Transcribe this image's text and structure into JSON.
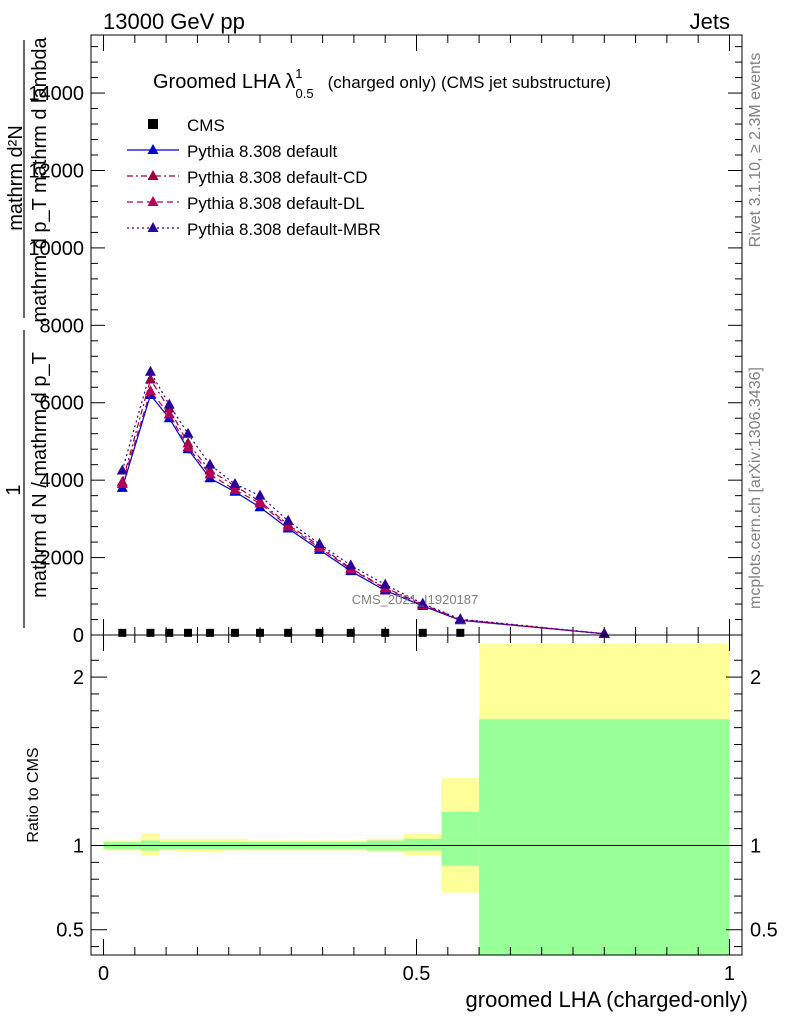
{
  "header": {
    "left": "13000 GeV pp",
    "right": "Jets"
  },
  "side_labels": {
    "rivet": "Rivet 3.1.10, ≥ 2.3M events",
    "mcplots": "mcplots.cern.ch [arXiv:1306.3436]"
  },
  "watermark": "CMS_2021_I1920187",
  "colors": {
    "default": "#0000cc",
    "cd": "#99003d",
    "dl": "#b3005a",
    "mbr": "#2b0099",
    "band_yellow": "#ffff99",
    "band_green": "#99ff99"
  },
  "chart_data": [
    {
      "type": "line",
      "title": "Groomed LHA λ",
      "title_sup": "1",
      "title_sub": "0.5",
      "title_suffix": "(charged only) (CMS jet substructure)",
      "ylabel_top": "mathrm d²N",
      "ylabel_bottom_left": "1",
      "ylabel_mid": "mathrm d p_T mathrm d lambda",
      "ylabel_main": "mathrm d N / mathrm d p_T",
      "ylim": [
        0,
        15500
      ],
      "yticks": [
        {
          "v": 0,
          "label": "0"
        },
        {
          "v": 2000,
          "label": "2000"
        },
        {
          "v": 4000,
          "label": "4000"
        },
        {
          "v": 6000,
          "label": "6000"
        },
        {
          "v": 8000,
          "label": "8000"
        },
        {
          "v": 10000,
          "label": "10000"
        },
        {
          "v": 12000,
          "label": "12000"
        },
        {
          "v": 14000,
          "label": "14000"
        }
      ],
      "xlim": [
        -0.02,
        1.02
      ],
      "data": {
        "name": "CMS",
        "x": [
          0.03,
          0.075,
          0.105,
          0.135,
          0.17,
          0.21,
          0.25,
          0.295,
          0.345,
          0.395,
          0.45,
          0.51,
          0.57
        ],
        "y": [
          30,
          30,
          30,
          30,
          30,
          30,
          30,
          30,
          30,
          30,
          30,
          30,
          30
        ]
      },
      "series": [
        {
          "name": "Pythia 8.308 default",
          "style": "solid",
          "x": [
            0.03,
            0.075,
            0.105,
            0.135,
            0.17,
            0.21,
            0.25,
            0.295,
            0.345,
            0.395,
            0.45,
            0.51,
            0.57,
            0.8
          ],
          "y": [
            3800,
            6200,
            5600,
            4800,
            4050,
            3700,
            3300,
            2750,
            2200,
            1650,
            1150,
            750,
            380,
            30
          ]
        },
        {
          "name": "Pythia 8.308 default-CD",
          "style": "dashdot",
          "x": [
            0.03,
            0.075,
            0.105,
            0.135,
            0.17,
            0.21,
            0.25,
            0.295,
            0.345,
            0.395,
            0.45,
            0.51,
            0.57,
            0.8
          ],
          "y": [
            3950,
            6600,
            5850,
            4950,
            4250,
            3850,
            3450,
            2850,
            2300,
            1720,
            1220,
            790,
            400,
            32
          ]
        },
        {
          "name": "Pythia 8.308 default-DL",
          "style": "dashed",
          "x": [
            0.03,
            0.075,
            0.105,
            0.135,
            0.17,
            0.21,
            0.25,
            0.295,
            0.345,
            0.395,
            0.45,
            0.51,
            0.57,
            0.8
          ],
          "y": [
            3900,
            6300,
            5700,
            4850,
            4150,
            3750,
            3400,
            2800,
            2250,
            1700,
            1200,
            770,
            390,
            31
          ]
        },
        {
          "name": "Pythia 8.308 default-MBR",
          "style": "dotted",
          "x": [
            0.03,
            0.075,
            0.105,
            0.135,
            0.17,
            0.21,
            0.25,
            0.295,
            0.345,
            0.395,
            0.45,
            0.51,
            0.57,
            0.8
          ],
          "y": [
            4250,
            6800,
            5950,
            5200,
            4400,
            3900,
            3600,
            2950,
            2350,
            1800,
            1300,
            810,
            410,
            33
          ]
        }
      ]
    },
    {
      "type": "area",
      "ylabel": "Ratio to CMS",
      "xlabel": "groomed LHA (charged-only)",
      "ylim": [
        0.35,
        2.25
      ],
      "xlim": [
        -0.02,
        1.02
      ],
      "yticks": [
        {
          "v": 0.5,
          "label": "0.5"
        },
        {
          "v": 1,
          "label": "1"
        },
        {
          "v": 2,
          "label": "2"
        }
      ],
      "xticks": [
        {
          "v": 0,
          "label": "0"
        },
        {
          "v": 0.5,
          "label": "0.5"
        },
        {
          "v": 1,
          "label": "1"
        }
      ],
      "bins": [
        {
          "lo": 0.0,
          "hi": 0.015,
          "g_lo": 0.98,
          "g_hi": 1.02,
          "y_lo": 0.97,
          "y_hi": 1.03
        },
        {
          "lo": 0.015,
          "hi": 0.06,
          "g_lo": 0.98,
          "g_hi": 1.02,
          "y_lo": 0.97,
          "y_hi": 1.03
        },
        {
          "lo": 0.06,
          "hi": 0.09,
          "g_lo": 0.97,
          "g_hi": 1.03,
          "y_lo": 0.94,
          "y_hi": 1.07
        },
        {
          "lo": 0.09,
          "hi": 0.12,
          "g_lo": 0.98,
          "g_hi": 1.02,
          "y_lo": 0.97,
          "y_hi": 1.04
        },
        {
          "lo": 0.12,
          "hi": 0.15,
          "g_lo": 0.98,
          "g_hi": 1.02,
          "y_lo": 0.96,
          "y_hi": 1.04
        },
        {
          "lo": 0.15,
          "hi": 0.19,
          "g_lo": 0.98,
          "g_hi": 1.02,
          "y_lo": 0.96,
          "y_hi": 1.04
        },
        {
          "lo": 0.19,
          "hi": 0.23,
          "g_lo": 0.98,
          "g_hi": 1.02,
          "y_lo": 0.97,
          "y_hi": 1.04
        },
        {
          "lo": 0.23,
          "hi": 0.27,
          "g_lo": 0.98,
          "g_hi": 1.02,
          "y_lo": 0.97,
          "y_hi": 1.03
        },
        {
          "lo": 0.27,
          "hi": 0.32,
          "g_lo": 0.98,
          "g_hi": 1.02,
          "y_lo": 0.97,
          "y_hi": 1.03
        },
        {
          "lo": 0.32,
          "hi": 0.37,
          "g_lo": 0.98,
          "g_hi": 1.02,
          "y_lo": 0.97,
          "y_hi": 1.03
        },
        {
          "lo": 0.37,
          "hi": 0.42,
          "g_lo": 0.98,
          "g_hi": 1.02,
          "y_lo": 0.97,
          "y_hi": 1.03
        },
        {
          "lo": 0.42,
          "hi": 0.48,
          "g_lo": 0.97,
          "g_hi": 1.03,
          "y_lo": 0.96,
          "y_hi": 1.04
        },
        {
          "lo": 0.48,
          "hi": 0.54,
          "g_lo": 0.97,
          "g_hi": 1.04,
          "y_lo": 0.94,
          "y_hi": 1.07
        },
        {
          "lo": 0.54,
          "hi": 0.6,
          "g_lo": 0.88,
          "g_hi": 1.2,
          "y_lo": 0.72,
          "y_hi": 1.4
        },
        {
          "lo": 0.6,
          "hi": 1.0,
          "g_lo": 0.35,
          "g_hi": 1.75,
          "y_lo": 0.35,
          "y_hi": 2.2
        }
      ]
    }
  ]
}
